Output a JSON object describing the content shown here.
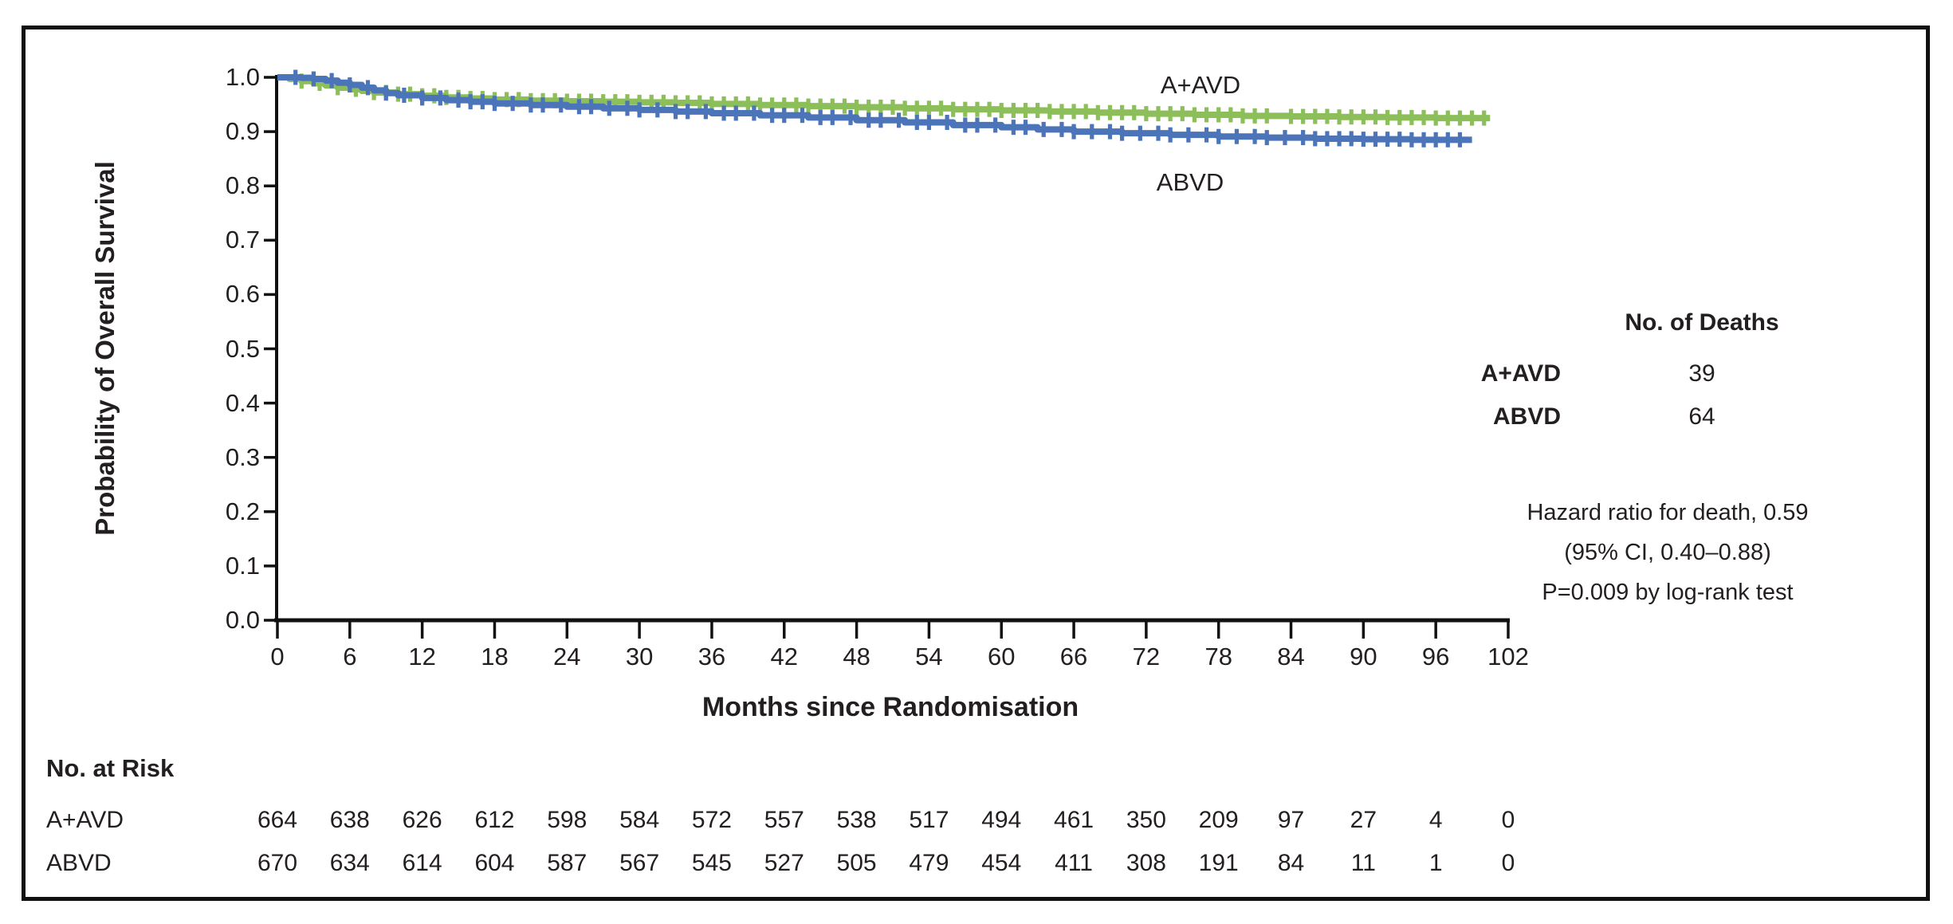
{
  "chart_data": {
    "type": "line",
    "subtype": "kaplan-meier-step",
    "title": "",
    "xlabel": "Months since Randomisation",
    "ylabel": "Probability of Overall Survival",
    "xlim": [
      0,
      102
    ],
    "ylim": [
      0.0,
      1.0
    ],
    "grid": false,
    "x_ticks": [
      0,
      6,
      12,
      18,
      24,
      30,
      36,
      42,
      48,
      54,
      60,
      66,
      72,
      78,
      84,
      90,
      96,
      102
    ],
    "y_ticks": [
      "1.0",
      "0.9",
      "0.8",
      "0.7",
      "0.6",
      "0.5",
      "0.4",
      "0.3",
      "0.2",
      "0.1",
      "0.0"
    ],
    "series": [
      {
        "name": "A+AVD",
        "color": "#8cbe5a",
        "points": [
          [
            0,
            1.0
          ],
          [
            1,
            0.997
          ],
          [
            2,
            0.993
          ],
          [
            3,
            0.989
          ],
          [
            4,
            0.985
          ],
          [
            5,
            0.981
          ],
          [
            6,
            0.978
          ],
          [
            7,
            0.975
          ],
          [
            8,
            0.972
          ],
          [
            10,
            0.969
          ],
          [
            12,
            0.966
          ],
          [
            14,
            0.963
          ],
          [
            16,
            0.961
          ],
          [
            18,
            0.959
          ],
          [
            21,
            0.957
          ],
          [
            24,
            0.956
          ],
          [
            27,
            0.955
          ],
          [
            30,
            0.954
          ],
          [
            33,
            0.953
          ],
          [
            36,
            0.951
          ],
          [
            40,
            0.949
          ],
          [
            44,
            0.947
          ],
          [
            48,
            0.945
          ],
          [
            52,
            0.943
          ],
          [
            56,
            0.941
          ],
          [
            60,
            0.939
          ],
          [
            64,
            0.937
          ],
          [
            68,
            0.935
          ],
          [
            72,
            0.933
          ],
          [
            76,
            0.931
          ],
          [
            80,
            0.929
          ],
          [
            84,
            0.928
          ],
          [
            88,
            0.927
          ],
          [
            92,
            0.926
          ],
          [
            96,
            0.925
          ],
          [
            100.5,
            0.925
          ]
        ],
        "censor_months": [
          2,
          3.5,
          5,
          6.5,
          8,
          9,
          10,
          11,
          12,
          13,
          14,
          15,
          16,
          17,
          18,
          19,
          20,
          21,
          22,
          23,
          24,
          25,
          26,
          27,
          28,
          29,
          30,
          31,
          32,
          33,
          34,
          35,
          36,
          37,
          38,
          39,
          40,
          41,
          42,
          43,
          44,
          45,
          46,
          47,
          48,
          49,
          50,
          51,
          52,
          53,
          54,
          55,
          56,
          57,
          58,
          59,
          60,
          61,
          62,
          63,
          64,
          65,
          66,
          67,
          68,
          69,
          70,
          71,
          72,
          73,
          74,
          75,
          76,
          77,
          78,
          79,
          80,
          81,
          82,
          84,
          85,
          86,
          87,
          88,
          89,
          90,
          91,
          92,
          93,
          94,
          95,
          96,
          97,
          98,
          99,
          100
        ]
      },
      {
        "name": "ABVD",
        "color": "#4c74b9",
        "points": [
          [
            0,
            1.0
          ],
          [
            2,
            0.999
          ],
          [
            3,
            0.997
          ],
          [
            4,
            0.994
          ],
          [
            5,
            0.99
          ],
          [
            6,
            0.986
          ],
          [
            7,
            0.981
          ],
          [
            8,
            0.976
          ],
          [
            9,
            0.971
          ],
          [
            10,
            0.967
          ],
          [
            12,
            0.962
          ],
          [
            14,
            0.958
          ],
          [
            16,
            0.955
          ],
          [
            18,
            0.952
          ],
          [
            21,
            0.949
          ],
          [
            24,
            0.946
          ],
          [
            27,
            0.943
          ],
          [
            30,
            0.94
          ],
          [
            33,
            0.937
          ],
          [
            36,
            0.934
          ],
          [
            40,
            0.93
          ],
          [
            44,
            0.926
          ],
          [
            48,
            0.921
          ],
          [
            52,
            0.917
          ],
          [
            56,
            0.912
          ],
          [
            60,
            0.908
          ],
          [
            63,
            0.904
          ],
          [
            66,
            0.9
          ],
          [
            70,
            0.897
          ],
          [
            74,
            0.894
          ],
          [
            78,
            0.891
          ],
          [
            82,
            0.889
          ],
          [
            86,
            0.887
          ],
          [
            90,
            0.886
          ],
          [
            94,
            0.885
          ],
          [
            99,
            0.885
          ]
        ],
        "censor_months": [
          1.5,
          3,
          4.5,
          6,
          7.5,
          9,
          10.5,
          12,
          13.5,
          15,
          16,
          17,
          18,
          19.5,
          21,
          22,
          23.5,
          25,
          26,
          27.5,
          29,
          30,
          31.5,
          33,
          34,
          35.5,
          37,
          38,
          39.5,
          41,
          42,
          43.5,
          45,
          46,
          47.5,
          49,
          50,
          51.5,
          53,
          54,
          55.5,
          57,
          58,
          59.5,
          61,
          62,
          63.5,
          65,
          66,
          67.5,
          69,
          70,
          71.5,
          73,
          74,
          75.5,
          77,
          78,
          79.5,
          81,
          82,
          83.5,
          85,
          86,
          87,
          88,
          89,
          90,
          91,
          92,
          93,
          94,
          95,
          96,
          97,
          98
        ]
      }
    ],
    "curve_labels": {
      "top": "A+AVD",
      "bottom": "ABVD"
    },
    "deaths_table": {
      "header": "No. of Deaths",
      "rows": [
        {
          "label": "A+AVD",
          "value": "39"
        },
        {
          "label": "ABVD",
          "value": "64"
        }
      ]
    },
    "stats_annotation": {
      "line1": "Hazard ratio for death, 0.59",
      "line2": "(95% CI, 0.40–0.88)",
      "line3": "P=0.009 by log-rank test"
    },
    "risk_table": {
      "title": "No. at Risk",
      "months": [
        0,
        6,
        12,
        18,
        24,
        30,
        36,
        42,
        48,
        54,
        60,
        66,
        72,
        78,
        84,
        90,
        96,
        102
      ],
      "rows": [
        {
          "label": "A+AVD",
          "values": [
            664,
            638,
            626,
            612,
            598,
            584,
            572,
            557,
            538,
            517,
            494,
            461,
            350,
            209,
            97,
            27,
            4,
            0
          ]
        },
        {
          "label": "ABVD",
          "values": [
            670,
            634,
            614,
            604,
            587,
            567,
            545,
            527,
            505,
            479,
            454,
            411,
            308,
            191,
            84,
            11,
            1,
            0
          ]
        }
      ]
    }
  }
}
